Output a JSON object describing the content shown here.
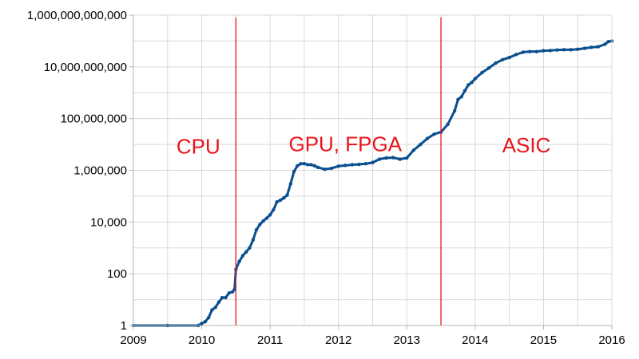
{
  "chart_data": {
    "type": "line",
    "title": "",
    "xlabel": "",
    "ylabel": "",
    "yscale": "log10",
    "xlim": [
      2009,
      2016
    ],
    "ylim": [
      1,
      1000000000000
    ],
    "x_tick_labels": [
      "2009",
      "2010",
      "2011",
      "2012",
      "2013",
      "2014",
      "2015",
      "2016"
    ],
    "y_tick_labels": [
      "1",
      "100",
      "10,000",
      "1,000,000",
      "100,000,000",
      "10,000,000,000",
      "1,000,000,000,000"
    ],
    "grid": true,
    "legend": "none",
    "colors": {
      "series": "#0b4f8e",
      "divider": "#e8141c",
      "region_text": "#e8141c",
      "grid": "#d9d9d9"
    },
    "series": [
      {
        "values": [
          [
            2009.0,
            1
          ],
          [
            2009.5,
            1
          ],
          [
            2009.95,
            1
          ],
          [
            2010.0,
            1.2
          ],
          [
            2010.05,
            1.4
          ],
          [
            2010.1,
            2
          ],
          [
            2010.15,
            4
          ],
          [
            2010.2,
            5
          ],
          [
            2010.25,
            8
          ],
          [
            2010.3,
            12
          ],
          [
            2010.35,
            12
          ],
          [
            2010.4,
            18
          ],
          [
            2010.45,
            20
          ],
          [
            2010.48,
            25
          ],
          [
            2010.5,
            150
          ],
          [
            2010.55,
            300
          ],
          [
            2010.6,
            500
          ],
          [
            2010.65,
            700
          ],
          [
            2010.7,
            1000
          ],
          [
            2010.75,
            2000
          ],
          [
            2010.8,
            5000
          ],
          [
            2010.85,
            8000
          ],
          [
            2010.9,
            11000
          ],
          [
            2010.95,
            14000
          ],
          [
            2011.0,
            19000
          ],
          [
            2011.05,
            30000
          ],
          [
            2011.1,
            60000
          ],
          [
            2011.15,
            70000
          ],
          [
            2011.2,
            85000
          ],
          [
            2011.25,
            110000
          ],
          [
            2011.3,
            300000
          ],
          [
            2011.35,
            900000
          ],
          [
            2011.4,
            1500000
          ],
          [
            2011.45,
            1800000
          ],
          [
            2011.5,
            1800000
          ],
          [
            2011.55,
            1650000
          ],
          [
            2011.6,
            1650000
          ],
          [
            2011.65,
            1500000
          ],
          [
            2011.7,
            1300000
          ],
          [
            2011.8,
            1100000
          ],
          [
            2011.9,
            1200000
          ],
          [
            2012.0,
            1450000
          ],
          [
            2012.1,
            1550000
          ],
          [
            2012.2,
            1650000
          ],
          [
            2012.3,
            1700000
          ],
          [
            2012.4,
            1800000
          ],
          [
            2012.5,
            2000000
          ],
          [
            2012.6,
            2700000
          ],
          [
            2012.7,
            3000000
          ],
          [
            2012.8,
            3100000
          ],
          [
            2012.9,
            2700000
          ],
          [
            2013.0,
            3000000
          ],
          [
            2013.1,
            6000000
          ],
          [
            2013.2,
            10000000
          ],
          [
            2013.3,
            17000000
          ],
          [
            2013.4,
            25000000
          ],
          [
            2013.5,
            30000000
          ],
          [
            2013.6,
            60000000
          ],
          [
            2013.7,
            200000000
          ],
          [
            2013.75,
            550000000
          ],
          [
            2013.8,
            700000000
          ],
          [
            2013.85,
            1200000000
          ],
          [
            2013.9,
            2000000000
          ],
          [
            2013.95,
            2500000000
          ],
          [
            2014.0,
            3500000000
          ],
          [
            2014.1,
            6000000000
          ],
          [
            2014.2,
            9000000000
          ],
          [
            2014.3,
            14000000000
          ],
          [
            2014.4,
            19000000000
          ],
          [
            2014.5,
            23000000000
          ],
          [
            2014.6,
            30000000000
          ],
          [
            2014.7,
            37000000000
          ],
          [
            2014.8,
            39000000000
          ],
          [
            2014.9,
            39000000000
          ],
          [
            2015.0,
            42000000000
          ],
          [
            2015.1,
            43000000000
          ],
          [
            2015.2,
            45000000000
          ],
          [
            2015.3,
            46000000000
          ],
          [
            2015.4,
            46000000000
          ],
          [
            2015.5,
            48000000000
          ],
          [
            2015.6,
            52000000000
          ],
          [
            2015.7,
            57000000000
          ],
          [
            2015.8,
            60000000000
          ],
          [
            2015.9,
            75000000000
          ],
          [
            2015.95,
            95000000000
          ],
          [
            2016.0,
            100000000000
          ]
        ]
      }
    ],
    "dividers": [
      2010.5,
      2013.5
    ],
    "annotations": [
      {
        "text": "CPU",
        "x": 2009.95,
        "y": 4500000
      },
      {
        "text": "GPU, FPGA",
        "x": 2012.1,
        "y": 5500000
      },
      {
        "text": "ASIC",
        "x": 2014.75,
        "y": 5000000
      }
    ]
  }
}
